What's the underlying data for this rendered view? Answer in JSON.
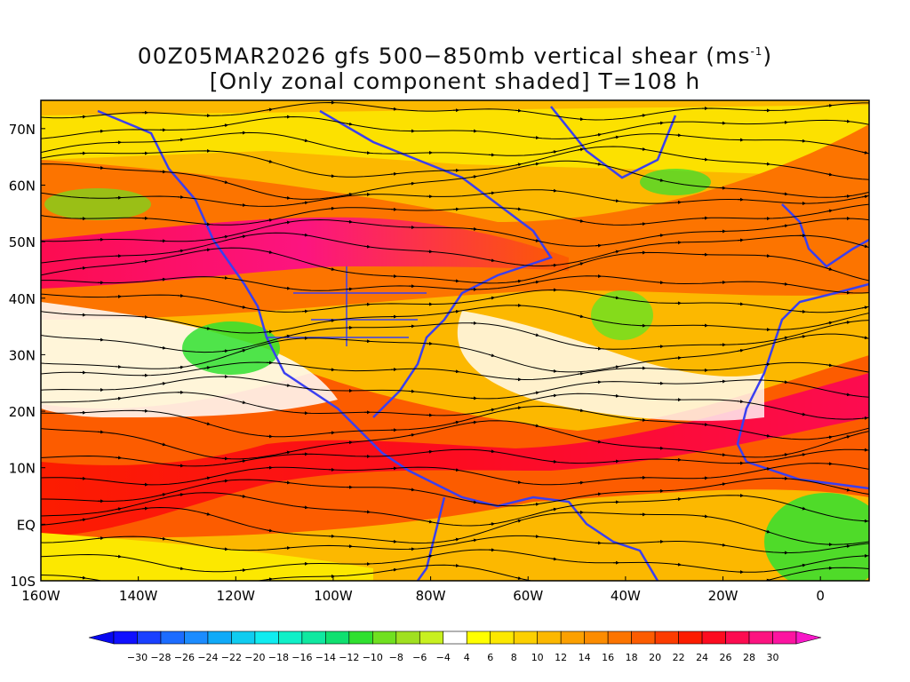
{
  "title": {
    "line1_prefix": "00Z05MAR2026 gfs 500−850mb vertical shear (ms",
    "line1_sup": "-1",
    "line1_suffix": ")",
    "line2": "[Only zonal component shaded] T=108 h"
  },
  "map": {
    "lon_range": [
      -160,
      10
    ],
    "lat_range": [
      -10,
      75
    ],
    "lon_ticks": [
      {
        "value": -160,
        "label": "160W"
      },
      {
        "value": -140,
        "label": "140W"
      },
      {
        "value": -120,
        "label": "120W"
      },
      {
        "value": -100,
        "label": "100W"
      },
      {
        "value": -80,
        "label": "80W"
      },
      {
        "value": -60,
        "label": "60W"
      },
      {
        "value": -40,
        "label": "40W"
      },
      {
        "value": -20,
        "label": "20W"
      },
      {
        "value": 0,
        "label": "0"
      }
    ],
    "lat_ticks": [
      {
        "value": 70,
        "label": "70N"
      },
      {
        "value": 60,
        "label": "60N"
      },
      {
        "value": 50,
        "label": "50N"
      },
      {
        "value": 40,
        "label": "40N"
      },
      {
        "value": 30,
        "label": "30N"
      },
      {
        "value": 20,
        "label": "20N"
      },
      {
        "value": 10,
        "label": "10N"
      },
      {
        "value": 0,
        "label": "EQ"
      },
      {
        "value": -10,
        "label": "10S"
      }
    ],
    "coast_color": "#3a3ff0",
    "streamline_color": "#000000"
  },
  "colorbar": {
    "bins": [
      {
        "color": "#1010ff"
      },
      {
        "color": "#1a40ff"
      },
      {
        "color": "#1c6cff"
      },
      {
        "color": "#1c8cff"
      },
      {
        "color": "#10aaf8"
      },
      {
        "color": "#10ccf0"
      },
      {
        "color": "#10ecf0"
      },
      {
        "color": "#10f0c8"
      },
      {
        "color": "#10e8a0"
      },
      {
        "color": "#10e070"
      },
      {
        "color": "#30e030"
      },
      {
        "color": "#70e020"
      },
      {
        "color": "#a0e020"
      },
      {
        "color": "#c8f020"
      },
      {
        "color": "#ffffff"
      },
      {
        "color": "#ffff00"
      },
      {
        "color": "#fce800"
      },
      {
        "color": "#fcd000"
      },
      {
        "color": "#fcb800"
      },
      {
        "color": "#fca000"
      },
      {
        "color": "#fc8c00"
      },
      {
        "color": "#fc7400"
      },
      {
        "color": "#fc5c00"
      },
      {
        "color": "#fc3c00"
      },
      {
        "color": "#fc1c00"
      },
      {
        "color": "#fc0c20"
      },
      {
        "color": "#fc0c50"
      },
      {
        "color": "#fc1480"
      },
      {
        "color": "#fc14a0"
      }
    ],
    "under_color": "#0808f0",
    "over_color": "#f818c8",
    "labels": [
      "−30",
      "−28",
      "−26",
      "−24",
      "−22",
      "−20",
      "−18",
      "−16",
      "−14",
      "−12",
      "−10",
      "−8",
      "−6",
      "−4",
      "4",
      "6",
      "8",
      "10",
      "12",
      "14",
      "16",
      "18",
      "20",
      "22",
      "24",
      "26",
      "28",
      "30"
    ]
  }
}
